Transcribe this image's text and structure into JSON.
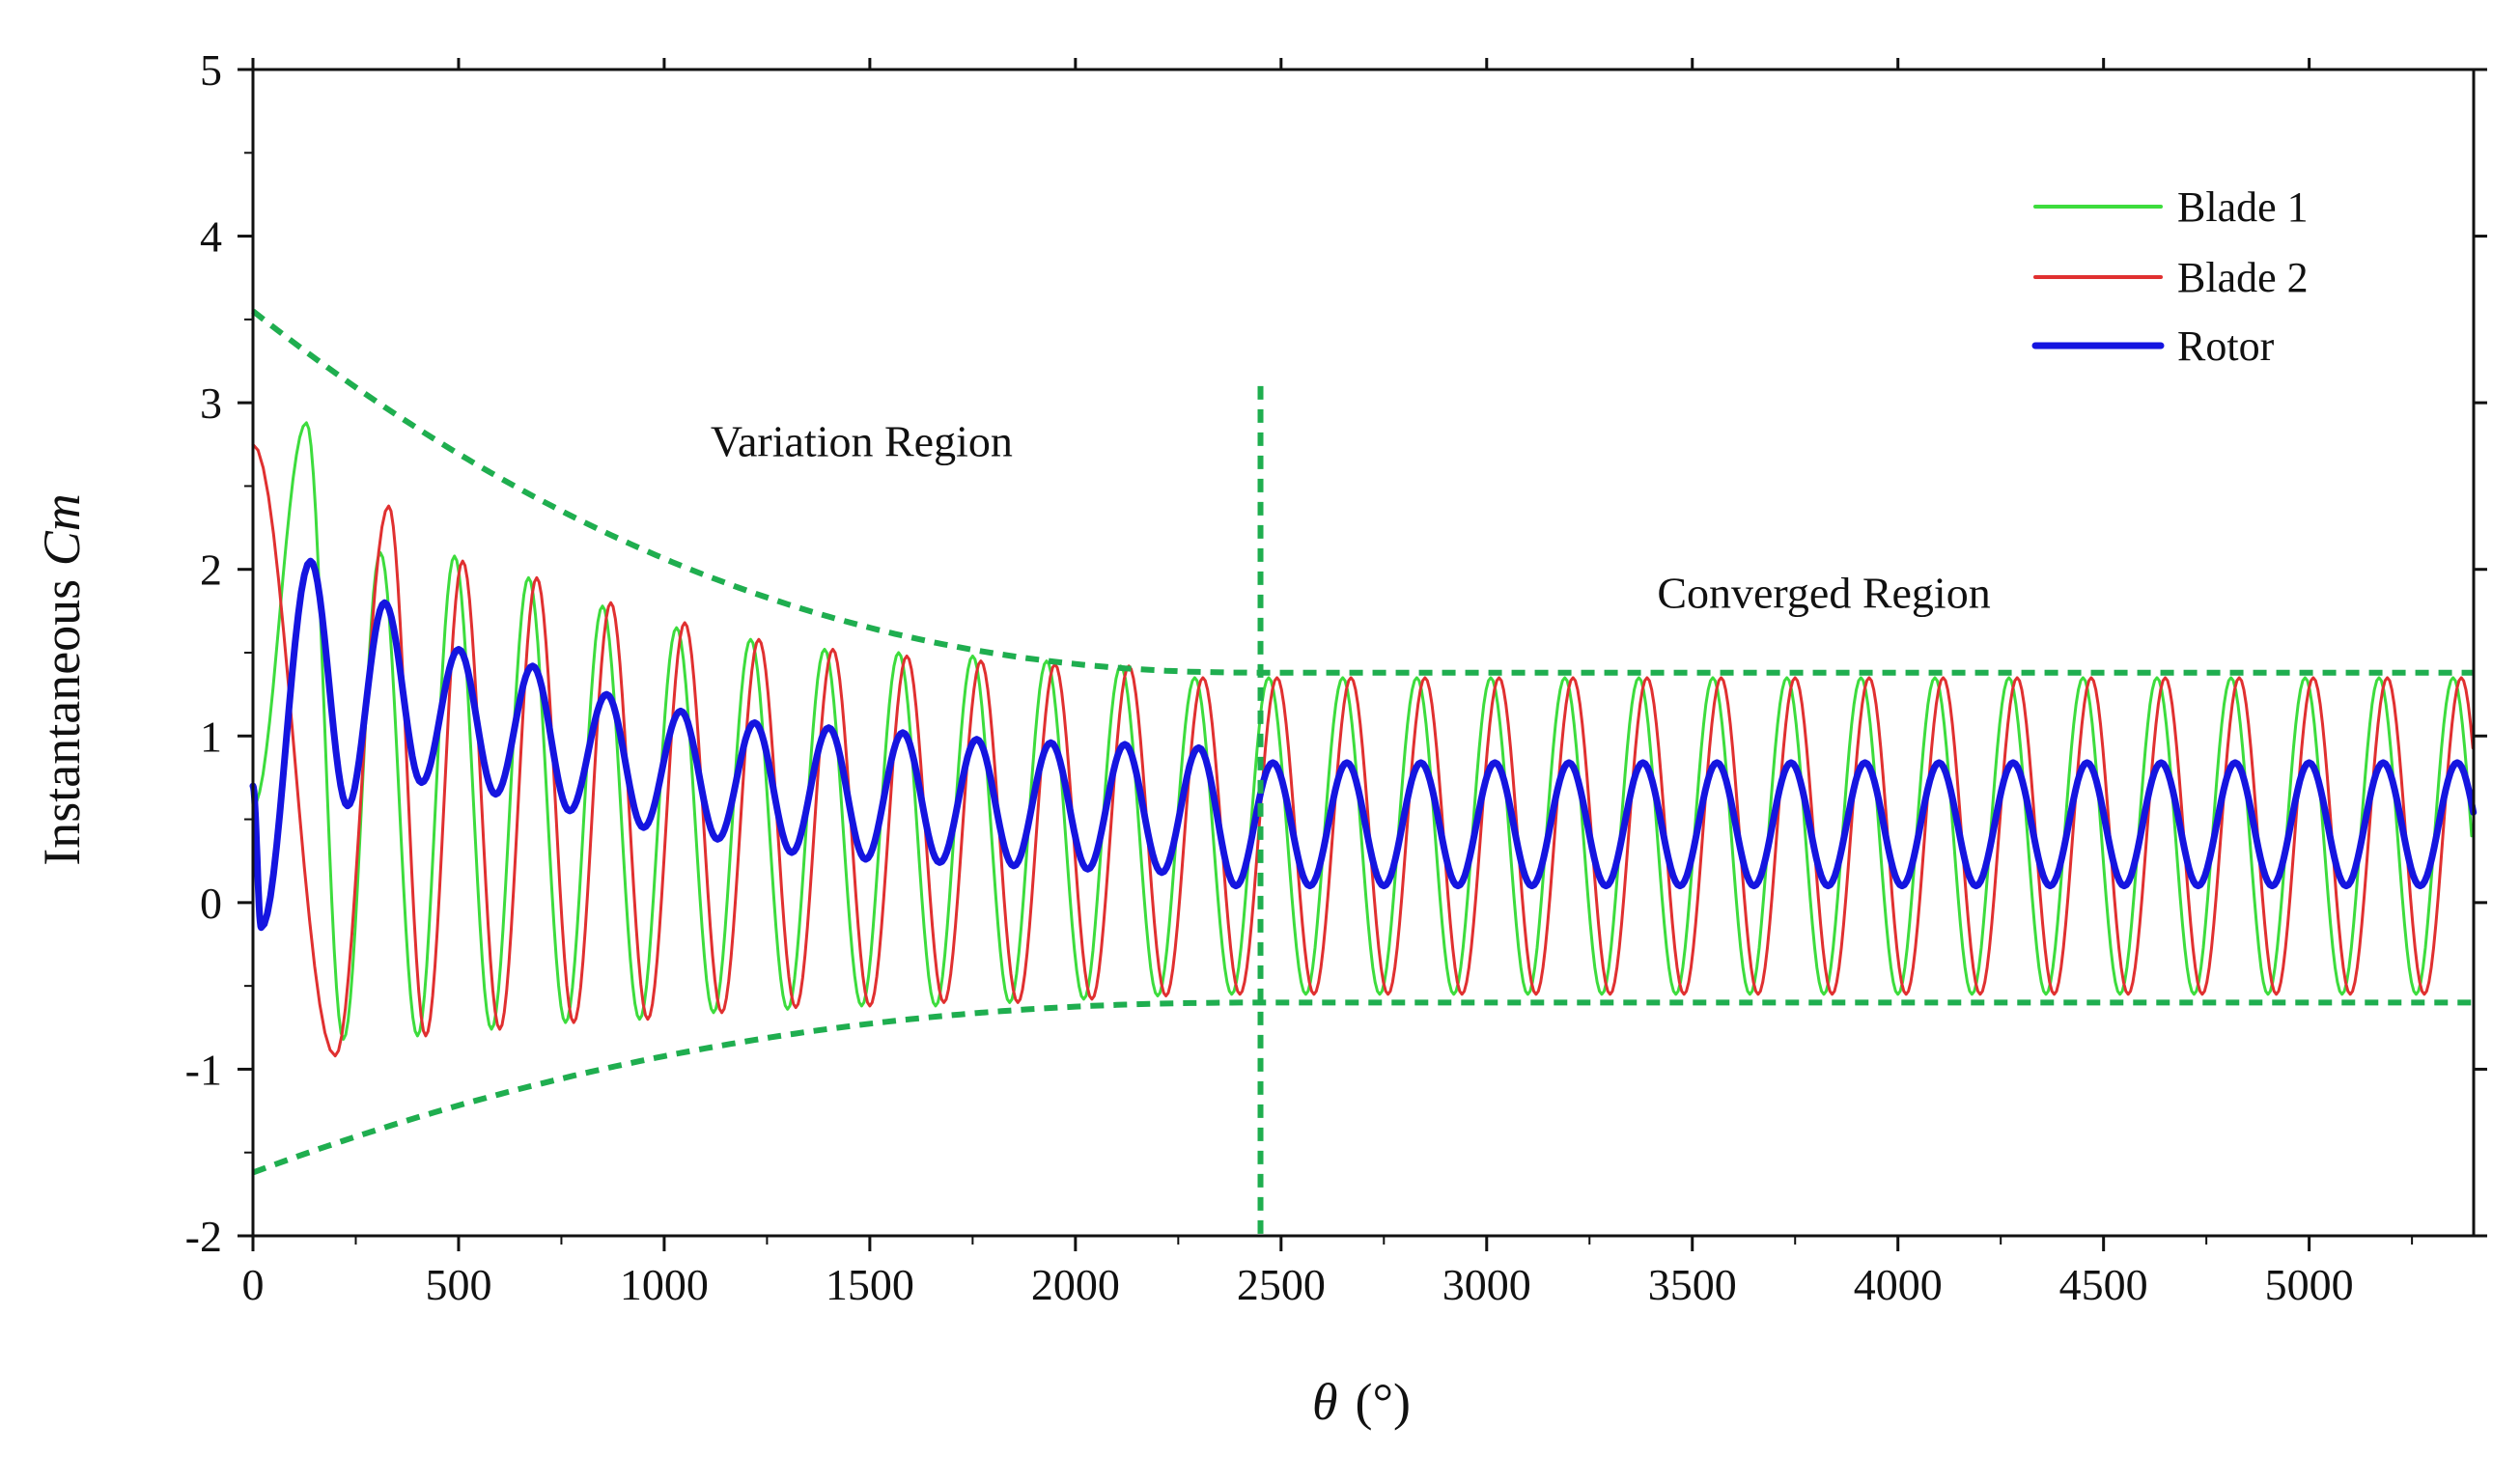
{
  "chart_data": {
    "type": "line",
    "title": "",
    "xlabel": {
      "symbol": "θ",
      "unit": "(°)"
    },
    "ylabel": {
      "prefix": "Instantaneous ",
      "italic": "Cm"
    },
    "xlim": [
      0,
      5400
    ],
    "ylim": [
      -2,
      5
    ],
    "xticks": [
      "0",
      "500",
      "1000",
      "1500",
      "2000",
      "2500",
      "3000",
      "3500",
      "4000",
      "4500",
      "5000"
    ],
    "yticks": [
      "5",
      "4",
      "3",
      "2",
      "1",
      "0",
      "-1",
      "-2"
    ],
    "grid": false,
    "legend_position": "top-right",
    "period_deg": 180,
    "blade2_phase_deg": 90,
    "series": [
      {
        "name": "Blade 1",
        "color": "#3ddc3d",
        "width": 3,
        "early_peaks": [
          [
            130,
            2.88
          ],
          [
            310,
            2.1
          ],
          [
            490,
            2.08
          ],
          [
            670,
            1.95
          ],
          [
            850,
            1.78
          ],
          [
            1030,
            1.65
          ],
          [
            1210,
            1.58
          ],
          [
            1390,
            1.52
          ],
          [
            1570,
            1.5
          ],
          [
            1750,
            1.48
          ],
          [
            1930,
            1.45
          ],
          [
            2110,
            1.42
          ]
        ],
        "early_troughs": [
          [
            220,
            -0.82
          ],
          [
            400,
            -0.8
          ],
          [
            580,
            -0.76
          ],
          [
            760,
            -0.72
          ],
          [
            940,
            -0.7
          ],
          [
            1120,
            -0.66
          ],
          [
            1300,
            -0.64
          ],
          [
            1480,
            -0.62
          ],
          [
            1660,
            -0.62
          ],
          [
            1840,
            -0.6
          ],
          [
            2020,
            -0.58
          ],
          [
            2200,
            -0.56
          ]
        ],
        "converged_max": 1.35,
        "converged_min": -0.55
      },
      {
        "name": "Blade 2",
        "color": "#e03030",
        "width": 3,
        "start_value": 2.75,
        "early_peaks": [
          [
            330,
            2.38
          ],
          [
            510,
            2.05
          ],
          [
            690,
            1.95
          ],
          [
            870,
            1.8
          ],
          [
            1050,
            1.68
          ],
          [
            1230,
            1.58
          ],
          [
            1410,
            1.52
          ],
          [
            1590,
            1.48
          ],
          [
            1770,
            1.45
          ],
          [
            1950,
            1.43
          ],
          [
            2130,
            1.42
          ]
        ],
        "early_troughs": [
          [
            200,
            -0.92
          ],
          [
            420,
            -0.8
          ],
          [
            600,
            -0.76
          ],
          [
            780,
            -0.72
          ],
          [
            960,
            -0.7
          ],
          [
            1140,
            -0.66
          ],
          [
            1320,
            -0.63
          ],
          [
            1500,
            -0.62
          ],
          [
            1680,
            -0.6
          ],
          [
            1860,
            -0.6
          ],
          [
            2040,
            -0.58
          ],
          [
            2220,
            -0.56
          ]
        ],
        "converged_max": 1.35,
        "converged_min": -0.55
      },
      {
        "name": "Rotor",
        "color": "#1515e0",
        "width": 7,
        "start_value": 0.7,
        "early_peaks": [
          [
            140,
            2.05
          ],
          [
            320,
            1.8
          ],
          [
            500,
            1.52
          ],
          [
            680,
            1.42
          ],
          [
            860,
            1.25
          ],
          [
            1040,
            1.15
          ],
          [
            1220,
            1.08
          ],
          [
            1400,
            1.05
          ],
          [
            1580,
            1.02
          ],
          [
            1760,
            0.98
          ],
          [
            1940,
            0.96
          ],
          [
            2120,
            0.95
          ],
          [
            2300,
            0.93
          ]
        ],
        "early_troughs": [
          [
            20,
            -0.15
          ],
          [
            230,
            0.58
          ],
          [
            410,
            0.72
          ],
          [
            590,
            0.65
          ],
          [
            770,
            0.55
          ],
          [
            950,
            0.45
          ],
          [
            1130,
            0.38
          ],
          [
            1310,
            0.3
          ],
          [
            1490,
            0.26
          ],
          [
            1670,
            0.24
          ],
          [
            1850,
            0.22
          ],
          [
            2030,
            0.2
          ],
          [
            2210,
            0.18
          ]
        ],
        "converged_max": 0.84,
        "converged_min": 0.1
      }
    ],
    "envelopes": [
      {
        "name": "upper-envelope",
        "color": "#1fae4f",
        "start": 3.55,
        "end": 1.38,
        "transition_x": 2450
      },
      {
        "name": "lower-envelope",
        "color": "#1fae4f",
        "start": -1.62,
        "end": -0.6,
        "transition_x": 2450
      }
    ],
    "divider": {
      "x": 2450,
      "y_range": [
        -2,
        3.1
      ],
      "color": "#1fae4f"
    },
    "annotations": [
      {
        "text": "Variation Region",
        "x": 1480,
        "y": 2.68
      },
      {
        "text": "Converged Region",
        "x": 3820,
        "y": 1.77
      }
    ]
  }
}
